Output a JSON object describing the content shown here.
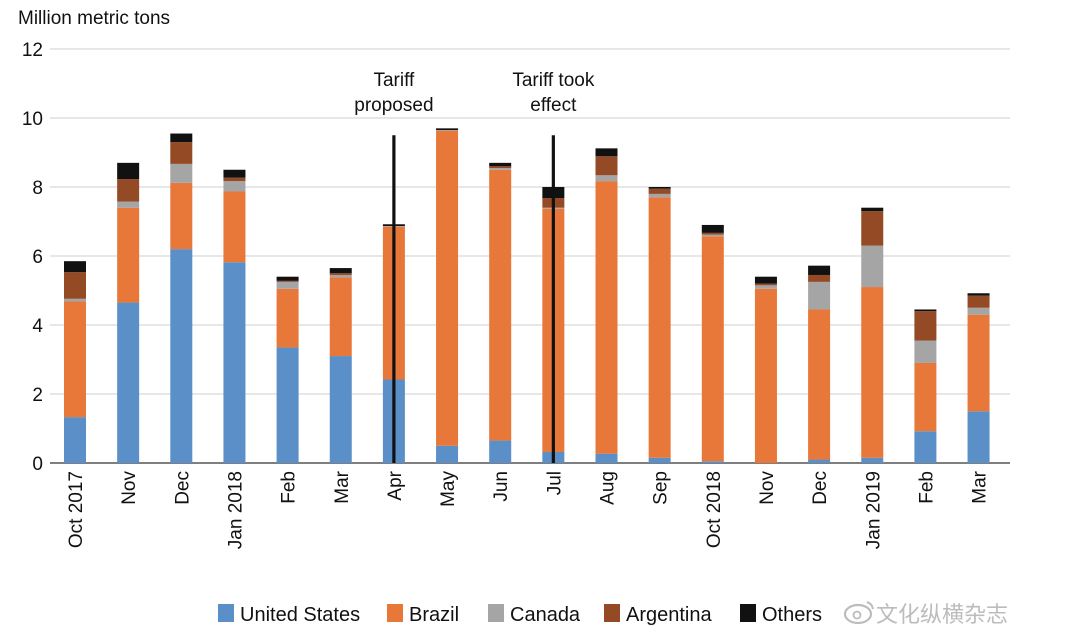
{
  "chart_data": {
    "type": "bar",
    "stacked": true,
    "ylabel": "Million metric tons",
    "ylim": [
      0,
      12
    ],
    "yticks": [
      0,
      2,
      4,
      6,
      8,
      10,
      12
    ],
    "grid": true,
    "legend_position": "bottom",
    "categories": [
      "Oct 2017",
      "Nov",
      "Dec",
      "Jan 2018",
      "Feb",
      "Mar",
      "Apr",
      "May",
      "Jun",
      "Jul",
      "Aug",
      "Sep",
      "Oct 2018",
      "Nov",
      "Dec",
      "Jan 2019",
      "Feb",
      "Mar"
    ],
    "series": [
      {
        "name": "United States",
        "color": "#5b8fc7",
        "values": [
          1.33,
          4.65,
          6.2,
          5.82,
          3.35,
          3.1,
          2.42,
          0.5,
          0.65,
          0.32,
          0.27,
          0.15,
          0.05,
          0.0,
          0.1,
          0.15,
          0.92,
          1.5
        ]
      },
      {
        "name": "Brazil",
        "color": "#e8773a",
        "values": [
          3.35,
          2.75,
          1.92,
          2.05,
          1.7,
          2.28,
          4.43,
          9.13,
          7.85,
          7.05,
          7.9,
          7.55,
          6.52,
          5.05,
          4.35,
          4.95,
          1.98,
          2.8
        ]
      },
      {
        "name": "Canada",
        "color": "#a5a5a5",
        "values": [
          0.08,
          0.18,
          0.55,
          0.3,
          0.2,
          0.07,
          0.02,
          0.02,
          0.05,
          0.03,
          0.17,
          0.1,
          0.05,
          0.1,
          0.8,
          1.2,
          0.65,
          0.2
        ]
      },
      {
        "name": "Argentina",
        "color": "#944a25",
        "values": [
          0.77,
          0.65,
          0.63,
          0.1,
          0.03,
          0.05,
          0.0,
          0.0,
          0.05,
          0.28,
          0.55,
          0.15,
          0.05,
          0.05,
          0.2,
          1.0,
          0.85,
          0.35
        ]
      },
      {
        "name": "Others",
        "color": "#111111",
        "values": [
          0.32,
          0.47,
          0.25,
          0.23,
          0.12,
          0.15,
          0.05,
          0.05,
          0.1,
          0.32,
          0.23,
          0.05,
          0.23,
          0.2,
          0.27,
          0.1,
          0.05,
          0.07
        ]
      }
    ],
    "annotations": [
      {
        "text_lines": [
          "Tariff",
          "proposed"
        ],
        "category": "Apr",
        "line_top_value": 9.5
      },
      {
        "text_lines": [
          "Tariff took",
          "effect"
        ],
        "category": "Jul",
        "line_top_value": 9.5
      }
    ]
  },
  "watermark": "文化纵横杂志"
}
